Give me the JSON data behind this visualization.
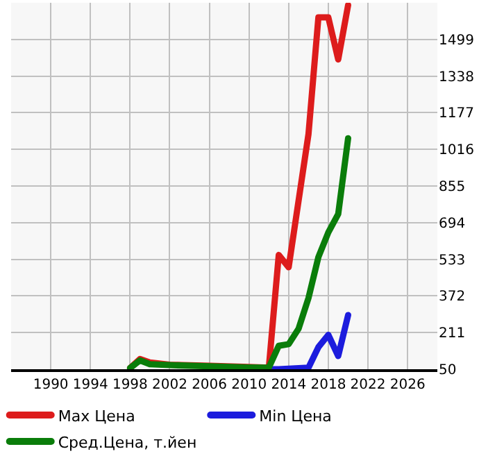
{
  "chart_data": {
    "type": "line",
    "x": [
      1998,
      1999,
      2000,
      2002,
      2006,
      2010,
      2012,
      2013,
      2014,
      2015,
      2016,
      2017,
      2018,
      2019,
      2020
    ],
    "series": [
      {
        "name": "Max Цена",
        "color": "#dd1c1c",
        "values": [
          55,
          95,
          80,
          70,
          65,
          60,
          57,
          552,
          498,
          null,
          1083,
          1596,
          1596,
          1411,
          1650
        ]
      },
      {
        "name": "Min Цена",
        "color": "#1c1cdd",
        "values": [
          null,
          null,
          null,
          null,
          null,
          null,
          50,
          50,
          null,
          null,
          57,
          147,
          201,
          108,
          288
        ]
      },
      {
        "name": "Сред.Цена, т.йен",
        "color": "#0a7d0a",
        "values": [
          55,
          89,
          72,
          68,
          63,
          58,
          57,
          153,
          160,
          228,
          363,
          543,
          651,
          732,
          1065
        ]
      }
    ],
    "xlim": [
      1986,
      2029
    ],
    "xticks": [
      1990,
      1994,
      1998,
      2002,
      2006,
      2010,
      2014,
      2018,
      2022,
      2026
    ],
    "ylim": [
      50,
      1660
    ],
    "yticks": [
      50,
      211,
      372,
      533,
      694,
      855,
      1016,
      1177,
      1338,
      1499
    ],
    "grid": true,
    "legend": "bottom",
    "marker": "none",
    "line_style": "solid"
  }
}
